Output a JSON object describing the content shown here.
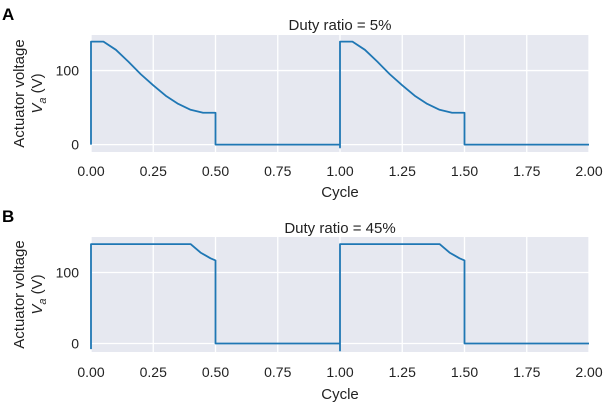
{
  "chart_data": [
    {
      "panel_label": "A",
      "type": "line",
      "title": "Duty ratio = 5%",
      "xlabel": "Cycle",
      "ylabel_line1": "Actuator voltage",
      "ylabel_line2_main": "V",
      "ylabel_line2_sub": "a",
      "ylabel_line2_unit": " (V)",
      "xlim": [
        0,
        2
      ],
      "ylim": [
        -10,
        148
      ],
      "xticks": [
        "0.00",
        "0.25",
        "0.50",
        "0.75",
        "1.00",
        "1.25",
        "1.50",
        "1.75",
        "2.00"
      ],
      "xtick_values": [
        0,
        0.25,
        0.5,
        0.75,
        1.0,
        1.25,
        1.5,
        1.75,
        2.0
      ],
      "yticks": [
        "0",
        "100"
      ],
      "ytick_values": [
        0,
        100
      ],
      "grid": true,
      "series": [
        {
          "color": "#1f77b4",
          "x": [
            0.0,
            0.0,
            0.0,
            0.05,
            0.1,
            0.15,
            0.2,
            0.25,
            0.3,
            0.35,
            0.4,
            0.45,
            0.49,
            0.5,
            0.5,
            1.0,
            1.0,
            1.0,
            1.0,
            1.05,
            1.1,
            1.15,
            1.2,
            1.25,
            1.3,
            1.35,
            1.4,
            1.45,
            1.49,
            1.5,
            1.5,
            2.0
          ],
          "y": [
            0,
            10,
            139,
            139,
            128,
            112,
            95,
            80,
            66,
            55,
            47,
            43,
            43,
            43,
            0,
            0,
            -4,
            139,
            139,
            139,
            128,
            112,
            95,
            80,
            66,
            55,
            47,
            43,
            43,
            43,
            0,
            0
          ]
        }
      ]
    },
    {
      "panel_label": "B",
      "type": "line",
      "title": "Duty ratio = 45%",
      "xlabel": "Cycle",
      "ylabel_line1": "Actuator voltage",
      "ylabel_line2_main": "V",
      "ylabel_line2_sub": "a",
      "ylabel_line2_unit": " (V)",
      "xlim": [
        0,
        2
      ],
      "ylim": [
        -12,
        150
      ],
      "xticks": [
        "0.00",
        "0.25",
        "0.50",
        "0.75",
        "1.00",
        "1.25",
        "1.50",
        "1.75",
        "2.00"
      ],
      "xtick_values": [
        0,
        0.25,
        0.5,
        0.75,
        1.0,
        1.25,
        1.5,
        1.75,
        2.0
      ],
      "yticks": [
        "0",
        "100"
      ],
      "ytick_values": [
        0,
        100
      ],
      "grid": true,
      "series": [
        {
          "color": "#1f77b4",
          "x": [
            0.0,
            0.0,
            0.0,
            0.4,
            0.42,
            0.44,
            0.46,
            0.48,
            0.5,
            0.5,
            1.0,
            1.0,
            1.0,
            1.4,
            1.42,
            1.44,
            1.46,
            1.48,
            1.5,
            1.5,
            2.0
          ],
          "y": [
            -8,
            0,
            140,
            140,
            134,
            128,
            124,
            120,
            117,
            0,
            0,
            -10,
            140,
            140,
            134,
            128,
            124,
            120,
            117,
            0,
            0
          ]
        }
      ]
    }
  ]
}
